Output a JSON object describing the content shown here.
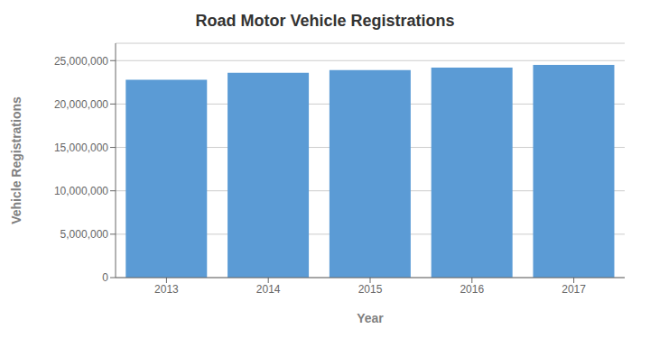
{
  "chart_data": {
    "type": "bar",
    "title": "Road Motor Vehicle Registrations",
    "xlabel": "Year",
    "ylabel": "Vehicle Registrations",
    "categories": [
      "2013",
      "2014",
      "2015",
      "2016",
      "2017"
    ],
    "values": [
      22800000,
      23600000,
      23900000,
      24200000,
      24500000
    ],
    "color": "#5B9BD5",
    "ylim": [
      0,
      27000000
    ],
    "yticks": [
      0,
      {
        "value": 5000000,
        "label": "5,000,000"
      },
      {
        "value": 10000000,
        "label": "10,000,000"
      },
      {
        "value": 15000000,
        "label": "15,000,000"
      },
      {
        "value": 20000000,
        "label": "20,000,000"
      },
      {
        "value": 25000000,
        "label": "25,000,000"
      }
    ],
    "grid": true
  }
}
